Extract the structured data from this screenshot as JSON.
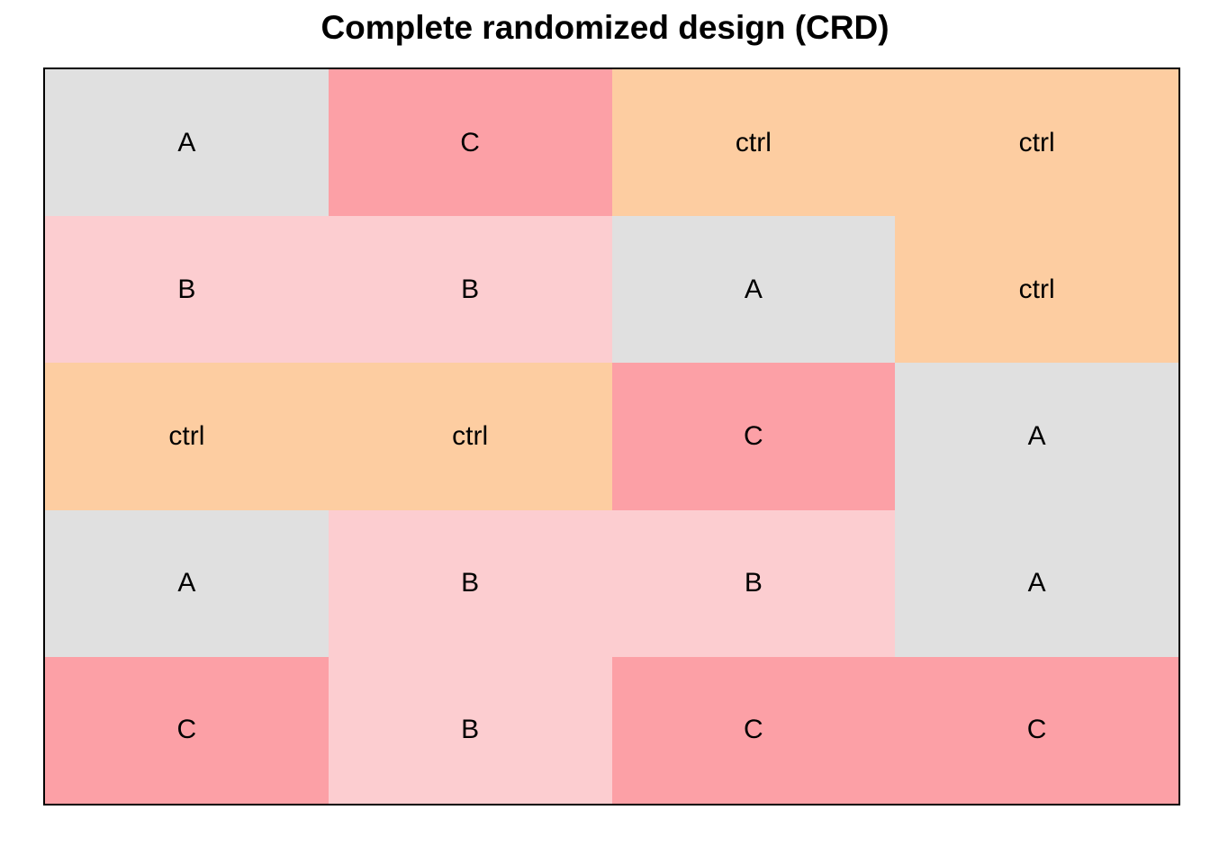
{
  "title": "Complete randomized design (CRD)",
  "colors": {
    "A": "#e0e0e0",
    "B": "#fccdd0",
    "C": "#fca0a6",
    "ctrl": "#fdcda1"
  },
  "layout": [
    [
      "A",
      "C",
      "ctrl",
      "ctrl"
    ],
    [
      "B",
      "B",
      "A",
      "ctrl"
    ],
    [
      "ctrl",
      "ctrl",
      "C",
      "A"
    ],
    [
      "A",
      "B",
      "B",
      "A"
    ],
    [
      "C",
      "B",
      "C",
      "C"
    ]
  ]
}
